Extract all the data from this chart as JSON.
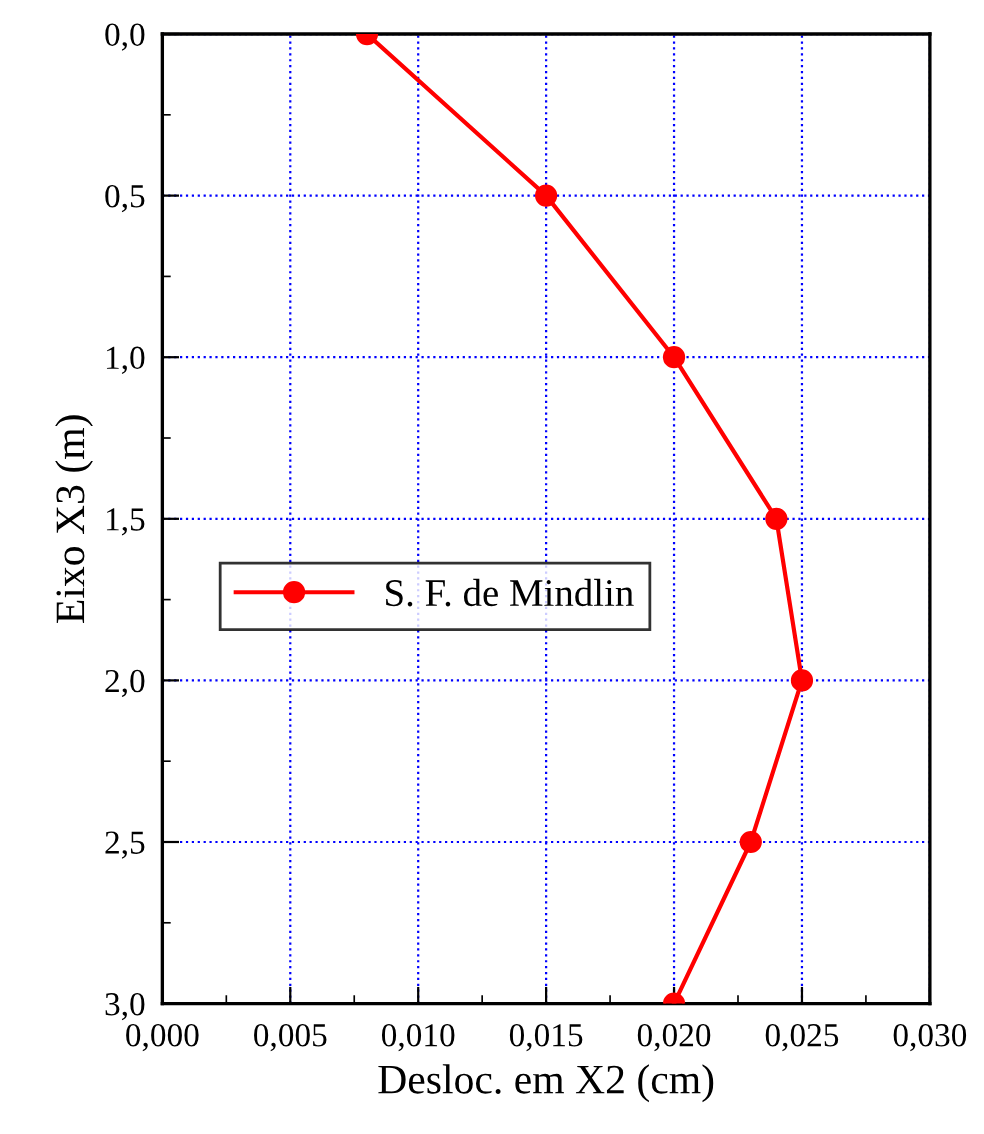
{
  "chart_data": {
    "type": "line",
    "xlabel": "Desloc. em X2 (cm)",
    "ylabel": "Eixo X3 (m)",
    "x": [
      0.008,
      0.015,
      0.02,
      0.024,
      0.025,
      0.023,
      0.02
    ],
    "series": [
      {
        "name": "S. F. de Mindlin",
        "color": "#ff0000",
        "values": [
          0,
          0.5,
          1.0,
          1.5,
          2.0,
          2.5,
          3.0
        ]
      }
    ],
    "xlim": [
      0,
      0.03
    ],
    "xticks": [
      {
        "value": 0,
        "label": "0,000"
      },
      {
        "value": 0.005,
        "label": "0,005"
      },
      {
        "value": 0.01,
        "label": "0,010"
      },
      {
        "value": 0.015,
        "label": "0,015"
      },
      {
        "value": 0.02,
        "label": "0,020"
      },
      {
        "value": 0.025,
        "label": "0,025"
      },
      {
        "value": 0.03,
        "label": "0,030"
      }
    ],
    "ylim": [
      3,
      0
    ],
    "yticks": [
      {
        "value": 0,
        "label": "0,0"
      },
      {
        "value": 0.5,
        "label": "0,5"
      },
      {
        "value": 1,
        "label": "1,0"
      },
      {
        "value": 1.5,
        "label": "1,5"
      },
      {
        "value": 2,
        "label": "2,0"
      },
      {
        "value": 2.5,
        "label": "2,5"
      },
      {
        "value": 3,
        "label": "3,0"
      }
    ],
    "grid": true,
    "legend": "center",
    "marker": "circle",
    "line_style": "solid"
  }
}
